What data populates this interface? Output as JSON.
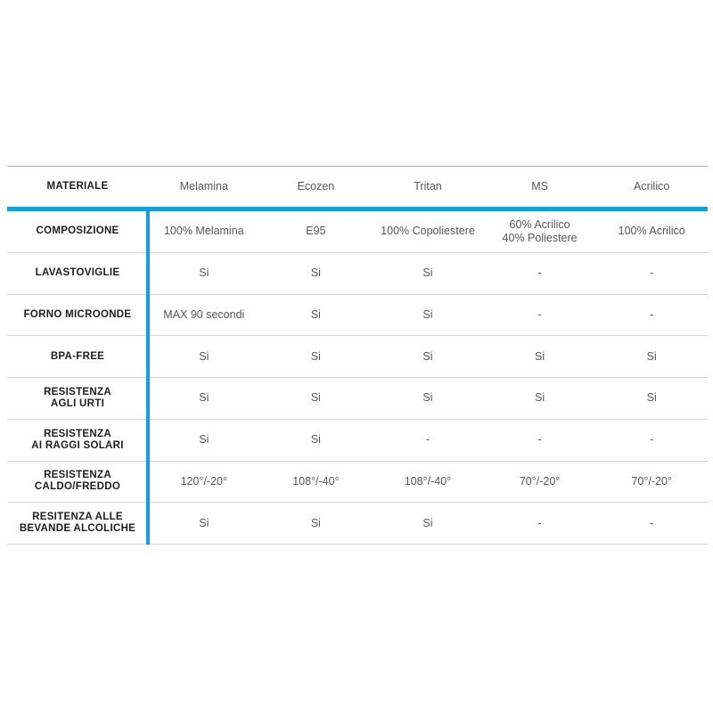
{
  "table": {
    "header": {
      "label": "MATERIALE",
      "columns": [
        "Melamina",
        "Ecozen",
        "Tritan",
        "MS",
        "Acrilico"
      ]
    },
    "rows": [
      {
        "label": "COMPOSIZIONE",
        "cells": [
          "100% Melamina",
          "E95",
          "100% Copoliestere",
          "60% Acrilico\n40% Poliestere",
          "100% Acrilico"
        ]
      },
      {
        "label": "LAVASTOVIGLIE",
        "cells": [
          "Si",
          "Si",
          "Si",
          "-",
          "-"
        ]
      },
      {
        "label": "FORNO MICROONDE",
        "cells": [
          "MAX 90 secondi",
          "Si",
          "Si",
          "-",
          "-"
        ]
      },
      {
        "label": "BPA-FREE",
        "cells": [
          "Si",
          "Si",
          "Si",
          "Si",
          "Si"
        ]
      },
      {
        "label": "RESISTENZA\nAGLI URTI",
        "cells": [
          "Si",
          "Si",
          "Si",
          "Si",
          "Si"
        ]
      },
      {
        "label": "RESISTENZA\nAI RAGGI SOLARI",
        "cells": [
          "Si",
          "Si",
          "-",
          "-",
          "-"
        ]
      },
      {
        "label": "RESISTENZA\nCALDO/FREDDO",
        "cells": [
          "120°/-20°",
          "108°/-40°",
          "108°/-40°",
          "70°/-20°",
          "70°/-20°"
        ]
      },
      {
        "label": "RESITENZA ALLE\nBEVANDE ALCOLICHE",
        "cells": [
          "Si",
          "Si",
          "Si",
          "-",
          "-"
        ]
      }
    ],
    "colors": {
      "accent_blue": "#199cd8",
      "label_text": "#1d1e20",
      "value_text": "#55575a",
      "row_separator": "#d6d6d6",
      "top_border": "#a9a9a9"
    }
  }
}
